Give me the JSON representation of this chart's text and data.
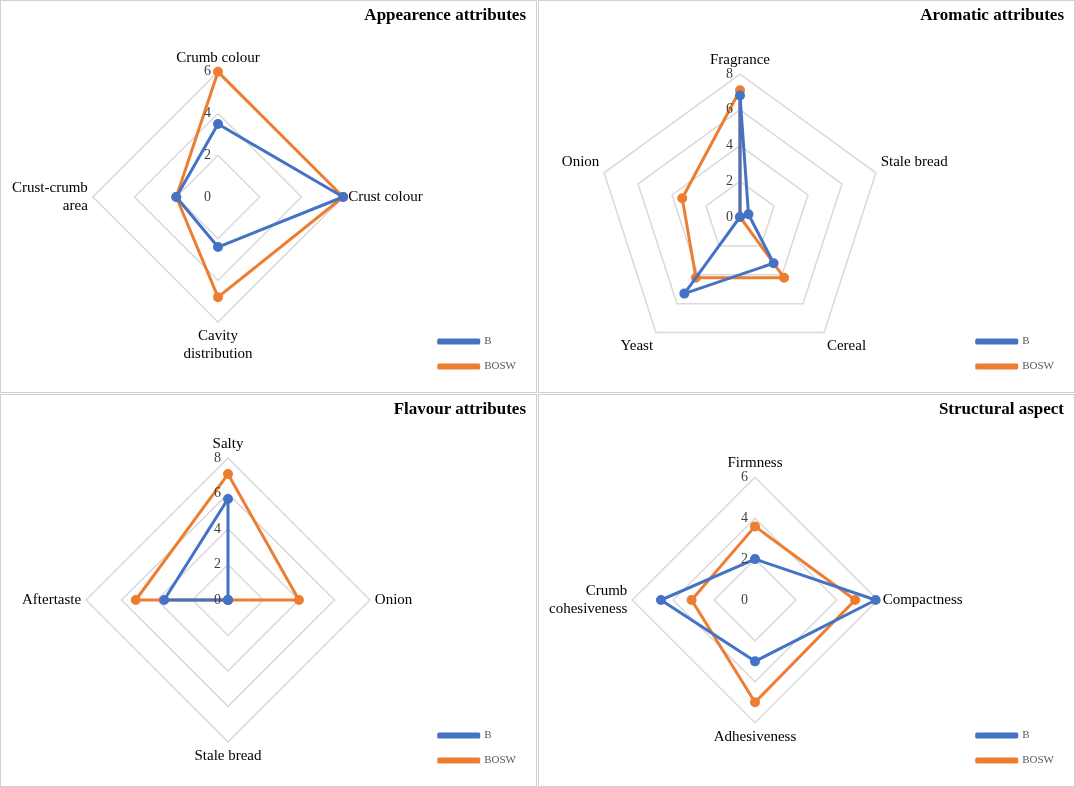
{
  "chart_data": [
    {
      "type": "radar",
      "title": "Appearence attributes",
      "categories": [
        "Crumb colour",
        "Crust colour",
        "Cavity distribution",
        "Crust-crumb area"
      ],
      "series": [
        {
          "name": "B",
          "color": "#4472c4",
          "values": [
            3.5,
            6,
            2.4,
            2
          ]
        },
        {
          "name": "BOSW",
          "color": "#ed7d31",
          "values": [
            6,
            6,
            4.8,
            2
          ]
        }
      ],
      "ylim": [
        0,
        6
      ],
      "yticks": [
        0,
        2,
        4,
        6
      ],
      "grid": true,
      "legend": "bottom right",
      "marker": "circle"
    },
    {
      "type": "radar",
      "title": "Aromatic attributes",
      "categories": [
        "Fragrance",
        "Stale bread",
        "Cereal",
        "Yeast",
        "Onion"
      ],
      "series": [
        {
          "name": "B",
          "color": "#4472c4",
          "values": [
            6.8,
            0.5,
            3.2,
            5.3,
            0
          ]
        },
        {
          "name": "BOSW",
          "color": "#ed7d31",
          "values": [
            7.1,
            0,
            4.2,
            4.2,
            3.4
          ]
        }
      ],
      "ylim": [
        0,
        8
      ],
      "yticks": [
        0,
        2,
        4,
        6,
        8
      ],
      "grid": true,
      "legend": "bottom right",
      "marker": "circle"
    },
    {
      "type": "radar",
      "title": "Flavour attributes",
      "categories": [
        "Salty",
        "Onion",
        "Stale bread",
        "Aftertaste"
      ],
      "series": [
        {
          "name": "B",
          "color": "#4472c4",
          "values": [
            5.7,
            0,
            0,
            3.6
          ]
        },
        {
          "name": "BOSW",
          "color": "#ed7d31",
          "values": [
            7.1,
            4,
            0,
            5.2
          ]
        }
      ],
      "ylim": [
        0,
        8
      ],
      "yticks": [
        0,
        2,
        4,
        6,
        8
      ],
      "grid": true,
      "legend": "bottom right",
      "marker": "circle"
    },
    {
      "type": "radar",
      "title": "Structural aspect",
      "categories": [
        "Firmness",
        "Compactness",
        "Adhesiveness",
        "Crumb cohesiveness"
      ],
      "series": [
        {
          "name": "B",
          "color": "#4472c4",
          "values": [
            2,
            5.9,
            3,
            4.6
          ]
        },
        {
          "name": "BOSW",
          "color": "#ed7d31",
          "values": [
            3.6,
            4.9,
            5,
            3.1
          ]
        }
      ],
      "ylim": [
        0,
        6
      ],
      "yticks": [
        0,
        2,
        4,
        6
      ],
      "grid": true,
      "legend": "bottom right",
      "marker": "circle"
    }
  ]
}
